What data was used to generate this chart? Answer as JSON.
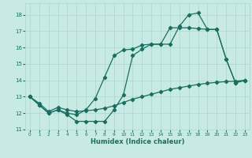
{
  "xlabel": "Humidex (Indice chaleur)",
  "xlim": [
    -0.5,
    23.5
  ],
  "ylim": [
    11,
    18.7
  ],
  "yticks": [
    11,
    12,
    13,
    14,
    15,
    16,
    17,
    18
  ],
  "xticks": [
    0,
    1,
    2,
    3,
    4,
    5,
    6,
    7,
    8,
    9,
    10,
    11,
    12,
    13,
    14,
    15,
    16,
    17,
    18,
    19,
    20,
    21,
    22,
    23
  ],
  "bg_color": "#c8eae4",
  "grid_color": "#b0d8d0",
  "line_color": "#1a6e60",
  "line1_x": [
    0,
    1,
    2,
    3,
    4,
    5,
    6,
    7,
    8,
    9,
    10,
    11,
    12,
    13,
    14,
    15,
    16,
    17,
    18,
    19,
    20,
    21,
    22,
    23
  ],
  "line1_y": [
    13.0,
    12.5,
    12.0,
    12.2,
    11.9,
    11.5,
    11.5,
    11.5,
    11.5,
    12.2,
    13.1,
    15.5,
    15.9,
    16.2,
    16.2,
    16.2,
    17.3,
    18.0,
    18.1,
    17.1,
    17.1,
    15.3,
    13.85,
    14.0
  ],
  "line2_x": [
    0,
    1,
    2,
    3,
    4,
    5,
    6,
    7,
    8,
    9,
    10,
    11,
    12,
    13,
    14,
    15,
    16,
    17,
    18,
    19,
    20,
    21,
    22,
    23
  ],
  "line2_y": [
    13.0,
    12.5,
    12.0,
    12.2,
    12.0,
    11.9,
    12.2,
    12.9,
    14.2,
    15.5,
    15.85,
    15.9,
    16.15,
    16.2,
    16.2,
    17.2,
    17.2,
    17.2,
    17.15,
    17.1,
    17.1,
    15.3,
    13.85,
    14.0
  ],
  "line3_x": [
    0,
    1,
    2,
    3,
    4,
    5,
    6,
    7,
    8,
    9,
    10,
    11,
    12,
    13,
    14,
    15,
    16,
    17,
    18,
    19,
    20,
    21,
    22,
    23
  ],
  "line3_y": [
    13.0,
    12.6,
    12.1,
    12.35,
    12.2,
    12.1,
    12.15,
    12.2,
    12.3,
    12.45,
    12.65,
    12.85,
    13.0,
    13.15,
    13.3,
    13.45,
    13.55,
    13.65,
    13.75,
    13.82,
    13.88,
    13.92,
    13.95,
    14.0
  ]
}
